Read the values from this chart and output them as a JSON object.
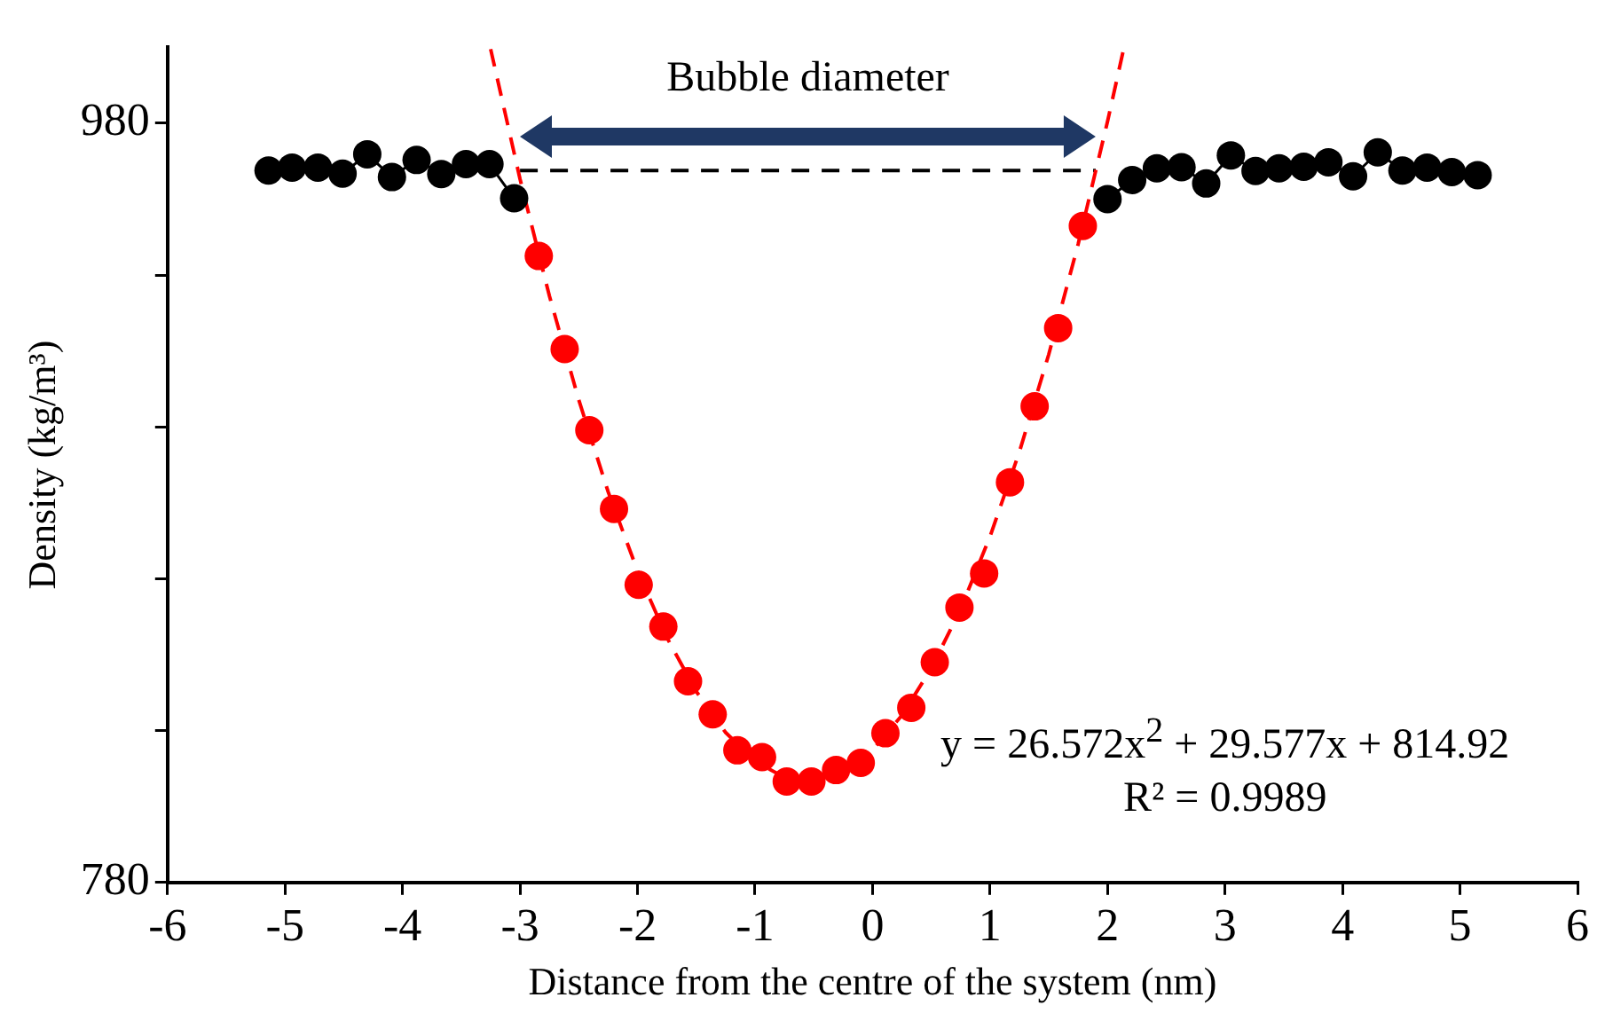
{
  "chart_data": {
    "type": "scatter",
    "xlabel": "Distance from the centre of the system (nm)",
    "ylabel": "Density (kg/m³)",
    "xlim": [
      -6,
      6
    ],
    "xticks": [
      -6,
      -5,
      -4,
      -3,
      -2,
      -1,
      0,
      1,
      2,
      3,
      4,
      5,
      6
    ],
    "ylim": [
      780,
      1000
    ],
    "yticks": [
      780,
      {
        "value": 820,
        "label": null
      },
      {
        "value": 860,
        "label": null
      },
      {
        "value": 900,
        "label": null
      },
      {
        "value": 940,
        "label": null
      },
      980
    ],
    "grid": false,
    "legend": false,
    "marker": "circle",
    "annotations": [
      "Bubble diameter",
      "y = 26.572x$^{2}$ + 29.577x + 814.92",
      "R² = 0.9989"
    ],
    "series": [
      {
        "type": "line",
        "color": "#000000",
        "line_style": "solid",
        "marker": "circle",
        "x": [
          -5.14,
          -4.94,
          -4.72,
          -4.51,
          -4.3,
          -4.09,
          -3.88,
          -3.67,
          -3.46,
          -3.26,
          -3.05,
          null,
          2.0,
          2.21,
          2.42,
          2.63,
          2.84,
          3.05,
          3.26,
          3.46,
          3.67,
          3.88,
          4.09,
          4.3,
          4.51,
          4.72,
          4.93,
          5.15
        ],
        "values": [
          967.5,
          968.3,
          968.3,
          966.7,
          971.8,
          965.8,
          970.3,
          966.6,
          969.2,
          969.2,
          960.2,
          null,
          960.0,
          965.0,
          968.1,
          968.4,
          964.1,
          971.5,
          967.4,
          968.1,
          968.5,
          969.7,
          966.0,
          972.3,
          967.5,
          968.3,
          967.1,
          966.3
        ]
      },
      {
        "color": "#ff0000",
        "x": [
          -2.84,
          -2.62,
          -2.41,
          -2.2,
          -1.99,
          -1.78,
          -1.57,
          -1.36,
          -1.15,
          -0.94,
          -0.73,
          -0.52,
          -0.31,
          -0.1,
          0.11,
          0.33,
          0.53,
          0.74,
          0.95,
          1.17,
          1.38,
          1.58,
          1.79
        ],
        "values": [
          945.0,
          920.5,
          899.1,
          878.4,
          858.4,
          847.4,
          833.0,
          824.3,
          814.8,
          813.0,
          806.6,
          806.6,
          809.6,
          811.5,
          819.3,
          826.0,
          838.0,
          852.4,
          861.4,
          885.4,
          905.4,
          926.0,
          952.9
        ]
      },
      {
        "type": "line",
        "color": "#ff0000",
        "line_style": "dashed",
        "marker": "none",
        "x": [
          -3.25,
          -3.0,
          -2.75,
          -2.5,
          -2.25,
          -2.0,
          -1.75,
          -1.5,
          -1.25,
          -1.0,
          -0.75,
          -0.5,
          -0.25,
          0,
          0.25,
          0.5,
          0.75,
          1.0,
          1.25,
          1.5,
          1.75,
          2.0,
          2.14
        ],
        "values": [
          999.5,
          965.3,
          934.5,
          907.1,
          882.9,
          862.1,
          844.5,
          830.3,
          819.5,
          811.9,
          807.7,
          806.8,
          809.2,
          814.9,
          824.0,
          836.4,
          852.0,
          871.1,
          893.4,
          919.1,
          948.1,
          980.4,
          999.9
        ]
      },
      {
        "type": "line",
        "color": "#000000",
        "line_style": "dashed",
        "marker": "none",
        "x": [
          -3.0,
          1.9
        ],
        "values": [
          967.5,
          967.5
        ]
      }
    ]
  }
}
